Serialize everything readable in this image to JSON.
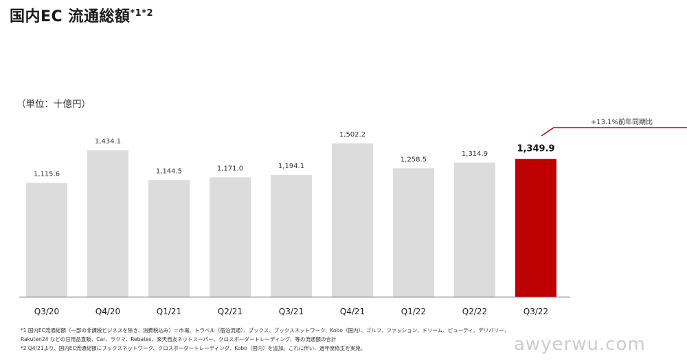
{
  "header": {
    "title": "国内EC 流通総額",
    "title_sup": "*1*2",
    "unit_label": "（単位：十億円）"
  },
  "chart_data": {
    "type": "bar",
    "categories": [
      "Q3/20",
      "Q4/20",
      "Q1/21",
      "Q2/21",
      "Q3/21",
      "Q4/21",
      "Q1/22",
      "Q2/22",
      "Q3/22"
    ],
    "values": [
      1115.6,
      1434.1,
      1144.5,
      1171.0,
      1194.1,
      1502.2,
      1258.5,
      1314.9,
      1349.9
    ],
    "value_labels": [
      "1,115.6",
      "1,434.1",
      "1,144.5",
      "1,171.0",
      "1,194.1",
      "1,502.2",
      "1,258.5",
      "1,314.9",
      "1,349.9"
    ],
    "highlight_index": 8,
    "annotation": "+13.1%前年同期比",
    "ylim": [
      0,
      1600
    ],
    "grid": false,
    "colors": {
      "bar": "#dcdcdc",
      "highlight": "#bf0000",
      "annotation_line": "#bf0000"
    }
  },
  "footnotes": [
    "*1 国内EC流通総額（一部の非課税ビジネスを除き、消費税込み）＝市場、トラベル（宿泊流通）、ブックス、ブックスネットワーク、Kobo（国内）、ゴルフ、ファッション、ドリーム、ビューティ、デリバリー、",
    "Rakuten24 などの日用品直販、Car、ラクマ、Rebates、楽天西友ネットスーパー、クロスボーダートレーディング、等の流通額の合計",
    "*2 Q4/21より、国内EC流通総額にブックスネットワーク、クロスボーダートレーディング、Kobo（国内）を追加。これに伴い、過年度修正を実施。"
  ],
  "watermark": "awyerwu.com"
}
